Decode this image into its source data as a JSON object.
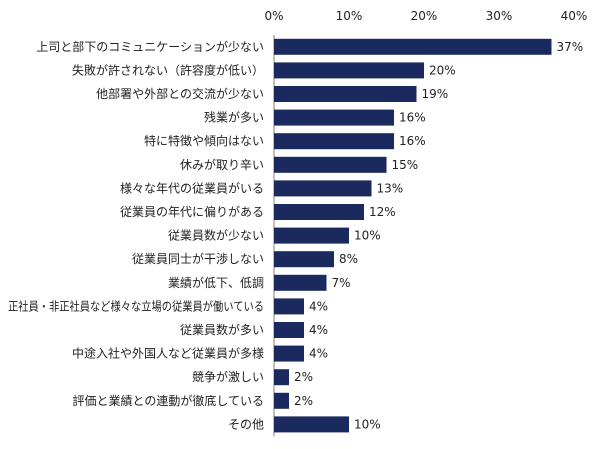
{
  "chart_data": {
    "type": "bar",
    "orientation": "horizontal",
    "title": "",
    "xlabel": "",
    "ylabel": "",
    "xlim": [
      0,
      40
    ],
    "ticks": [
      "0%",
      "10%",
      "20%",
      "30%",
      "40%"
    ],
    "tick_values": [
      0,
      10,
      20,
      30,
      40
    ],
    "grid": false,
    "bar_color": "#1a2a5e",
    "categories": [
      "上司と部下のコミュニケーションが少ない",
      "失敗が許されない（許容度が低い）",
      "他部署や外部との交流が少ない",
      "残業が多い",
      "特に特徴や傾向はない",
      "休みが取り辛い",
      "様々な年代の従業員がいる",
      "従業員の年代に偏りがある",
      "従業員数が少ない",
      "従業員同士が干渉しない",
      "業績が低下、低調",
      "正社員・非正社員など様々な立場の従業員が働いている",
      "従業員数が多い",
      "中途入社や外国人など従業員が多様",
      "競争が激しい",
      "評価と業績との連動が徹底している",
      "その他"
    ],
    "values": [
      37,
      20,
      19,
      16,
      16,
      15,
      13,
      12,
      10,
      8,
      7,
      4,
      4,
      4,
      2,
      2,
      10
    ],
    "value_labels": [
      "37%",
      "20%",
      "19%",
      "16%",
      "16%",
      "15%",
      "13%",
      "12%",
      "10%",
      "8%",
      "7%",
      "4%",
      "4%",
      "4%",
      "2%",
      "2%",
      "10%"
    ]
  }
}
